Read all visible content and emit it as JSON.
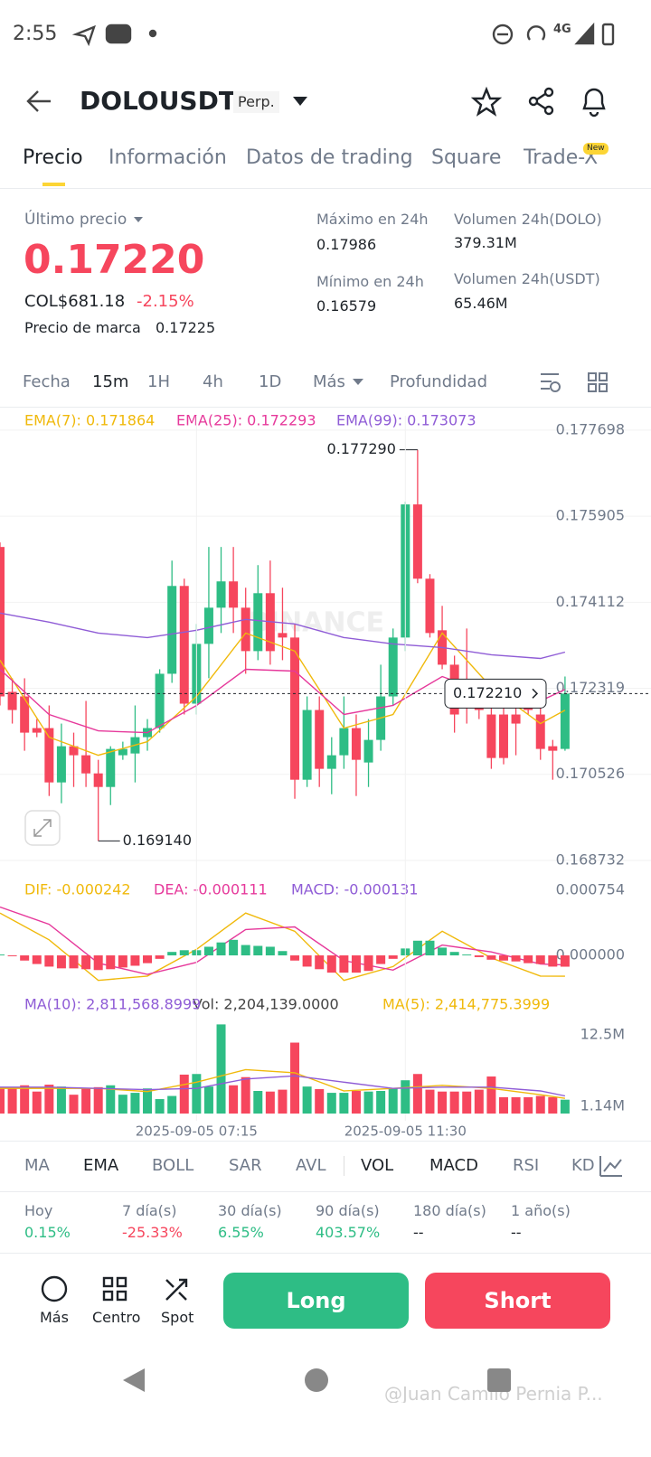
{
  "status_bar": {
    "time": "2:55",
    "network": "4G"
  },
  "header": {
    "symbol": "DOLOUSDT",
    "tag": "Perp."
  },
  "tabs": [
    "Precio",
    "Información",
    "Datos de trading",
    "Square",
    "Trade-X"
  ],
  "tabs_badge": "New",
  "price": {
    "label": "Último precio",
    "last": "0.17220",
    "fiat": "COL$681.18",
    "change": "-2.15%",
    "mark_label": "Precio de marca",
    "mark": "0.17225"
  },
  "stats": [
    {
      "label": "Máximo en 24h",
      "value": "0.17986"
    },
    {
      "label": "Mínimo en 24h",
      "value": "0.16579"
    },
    {
      "label": "Volumen 24h(DOLO)",
      "value": "379.31M"
    },
    {
      "label": "Volumen 24h(USDT)",
      "value": "65.46M"
    }
  ],
  "intervals": [
    "Fecha",
    "15m",
    "1H",
    "4h",
    "1D",
    "Más",
    "Profundidad"
  ],
  "chart_data": [
    {
      "type": "candlestick",
      "watermark": "BINANCE",
      "up_color": "#2ebd85",
      "down_color": "#f6465d",
      "grid": true,
      "xlim": [
        0,
        53
      ],
      "ylim": [
        0.168487,
        0.177998
      ],
      "yticks": [
        0.177698,
        0.175905,
        0.174112,
        0.172319,
        0.170526,
        0.168732
      ],
      "candles": [
        [
          0.175264,
          0.175358,
          0.171962,
          0.17215
        ],
        [
          0.172245,
          0.172528,
          0.171584,
          0.171867
        ],
        [
          0.17215,
          0.172528,
          0.171018,
          0.171395
        ],
        [
          0.17149,
          0.171678,
          0.171301,
          0.171395
        ],
        [
          0.17149,
          0.171962,
          0.170075,
          0.170358
        ],
        [
          0.170358,
          0.171584,
          0.169924,
          0.171112
        ],
        [
          0.171112,
          0.171395,
          0.170263,
          0.170924
        ],
        [
          0.170924,
          0.172056,
          0.170263,
          0.170546
        ],
        [
          0.170546,
          0.170829,
          0.16914,
          0.170263
        ],
        [
          0.170263,
          0.171112,
          0.169886,
          0.171056
        ],
        [
          0.170924,
          0.171207,
          0.170829,
          0.171056
        ],
        [
          0.170961,
          0.171962,
          0.170358,
          0.171301
        ],
        [
          0.171301,
          0.171678,
          0.171018,
          0.17149
        ],
        [
          0.17149,
          0.172716,
          0.171395,
          0.172622
        ],
        [
          0.172622,
          0.174981,
          0.172433,
          0.174452
        ],
        [
          0.174452,
          0.174603,
          0.171773,
          0.171999
        ],
        [
          0.171999,
          0.17366,
          0.171773,
          0.173245
        ],
        [
          0.173245,
          0.175264,
          0.172528,
          0.173999
        ],
        [
          0.173999,
          0.175264,
          0.173471,
          0.174547
        ],
        [
          0.174547,
          0.175264,
          0.173471,
          0.173999
        ],
        [
          0.173999,
          0.174415,
          0.172622,
          0.173094
        ],
        [
          0.173094,
          0.174886,
          0.172905,
          0.174301
        ],
        [
          0.174301,
          0.174981,
          0.172811,
          0.173094
        ],
        [
          0.173471,
          0.174415,
          0.172905,
          0.173377
        ],
        [
          0.173377,
          0.17366,
          0.170018,
          0.170414
        ],
        [
          0.170414,
          0.17215,
          0.170263,
          0.171867
        ],
        [
          0.171867,
          0.17215,
          0.170263,
          0.170641
        ],
        [
          0.170641,
          0.171301,
          0.170112,
          0.170924
        ],
        [
          0.170924,
          0.17215,
          0.170641,
          0.17149
        ],
        [
          0.17149,
          0.171773,
          0.170075,
          0.170829
        ],
        [
          0.170773,
          0.171678,
          0.170263,
          0.171244
        ],
        [
          0.171244,
          0.172811,
          0.171018,
          0.17215
        ],
        [
          0.17215,
          0.173565,
          0.171962,
          0.173377
        ],
        [
          0.173377,
          0.176207,
          0.173094,
          0.176151
        ],
        [
          0.176151,
          0.17729,
          0.174509,
          0.174603
        ],
        [
          0.174603,
          0.174698,
          0.173377,
          0.173471
        ],
        [
          0.173528,
          0.174037,
          0.172716,
          0.172811
        ],
        [
          0.172811,
          0.172999,
          0.171395,
          0.171773
        ],
        [
          0.17215,
          0.173565,
          0.171584,
          0.172056
        ],
        [
          0.171962,
          0.172245,
          0.171678,
          0.171867
        ],
        [
          0.171773,
          0.172056,
          0.170641,
          0.170867
        ],
        [
          0.171773,
          0.171962,
          0.170735,
          0.170867
        ],
        [
          0.171773,
          0.171962,
          0.170924,
          0.171584
        ],
        [
          0.171962,
          0.172056,
          0.171773,
          0.171867
        ],
        [
          0.171773,
          0.171962,
          0.170829,
          0.171056
        ],
        [
          0.171112,
          0.171244,
          0.170414,
          0.171018
        ],
        [
          0.171056,
          0.172565,
          0.171018,
          0.17221
        ]
      ],
      "series": [
        {
          "name": "EMA(7): 0.171864",
          "color": "#f0b90b",
          "x": [
            0,
            4,
            8,
            12,
            16,
            20,
            24,
            28,
            32,
            36,
            40,
            44,
            46
          ],
          "values": [
            0.172905,
            0.171301,
            0.170924,
            0.171207,
            0.17215,
            0.173471,
            0.173094,
            0.17149,
            0.171773,
            0.173471,
            0.172339,
            0.171584,
            0.171864
          ]
        },
        {
          "name": "EMA(25): 0.172293",
          "color": "#e6399b",
          "x": [
            0,
            4,
            8,
            12,
            16,
            20,
            24,
            28,
            32,
            36,
            40,
            44,
            46
          ],
          "values": [
            0.172716,
            0.171773,
            0.171433,
            0.171395,
            0.171962,
            0.172716,
            0.172678,
            0.171773,
            0.171962,
            0.172565,
            0.172188,
            0.172056,
            0.172293
          ]
        },
        {
          "name": "EMA(99): 0.173073",
          "color": "#8f5cd6",
          "x": [
            0,
            4,
            8,
            12,
            16,
            20,
            24,
            28,
            32,
            36,
            40,
            44,
            46
          ],
          "values": [
            0.173886,
            0.173698,
            0.173471,
            0.173377,
            0.173528,
            0.173754,
            0.17366,
            0.173377,
            0.173245,
            0.173169,
            0.173018,
            0.172942,
            0.173073
          ]
        }
      ],
      "annotations": [
        {
          "value": 0.17729,
          "label": "0.177290"
        },
        {
          "value": 0.16914,
          "label": "0.169140"
        },
        {
          "value": 0.17221,
          "label": "0.172210"
        }
      ]
    },
    {
      "type": "bar",
      "up_color": "#2ebd85",
      "down_color": "#f6465d",
      "xlim": [
        0,
        53
      ],
      "ylim": [
        -0.000429,
        0.000911
      ],
      "yticks": [
        0.000754,
        {
          "value": 0,
          "label": "0.000000"
        }
      ],
      "series": [
        {
          "name": "DIF: -0.000242",
          "color": "#f0b90b",
          "x": [
            0,
            4,
            8,
            12,
            16,
            20,
            24,
            28,
            32,
            36,
            40,
            44,
            46
          ],
          "values": [
            0.00049,
            0.00018,
            -0.00029,
            -0.00024,
            7e-05,
            0.00049,
            0.00028,
            -0.00029,
            -0.00013,
            0.00028,
            -3e-05,
            -0.00024,
            -0.000242
          ]
        },
        {
          "name": "DEA: -0.000111",
          "color": "#e6399b",
          "x": [
            0,
            4,
            8,
            12,
            16,
            20,
            24,
            28,
            32,
            36,
            40,
            44,
            46
          ],
          "values": [
            0.00056,
            0.00036,
            -9e-05,
            -0.00022,
            -8e-05,
            0.0003,
            0.00033,
            -6e-05,
            -0.00017,
            0.00012,
            4e-05,
            -0.0001,
            -0.000111
          ]
        },
        {
          "name": "MACD: -0.000131",
          "color": "#8f5cd6",
          "values": [
            1e-05,
            -1e-05,
            -6e-05,
            -0.0001,
            -0.00013,
            -0.00015,
            -0.00015,
            -0.00016,
            -0.00017,
            -0.00016,
            -0.00014,
            -0.00012,
            -9e-05,
            -4e-05,
            4e-05,
            6e-05,
            6e-05,
            0.0001,
            0.00015,
            0.00018,
            0.00012,
            0.00011,
            0.0001,
            5e-05,
            -6e-05,
            -0.00013,
            -0.00016,
            -0.0002,
            -0.0002,
            -0.0002,
            -0.00018,
            -0.0001,
            -4e-05,
            8e-05,
            0.00017,
            0.00017,
            9e-05,
            4e-05,
            1e-05,
            -2e-05,
            -5e-05,
            -6e-05,
            -7e-05,
            -9e-05,
            -0.0001,
            -0.00013,
            -0.000131
          ]
        }
      ]
    },
    {
      "type": "bar",
      "up_color": "#2ebd85",
      "down_color": "#f6465d",
      "xlim": [
        0,
        53
      ],
      "ylim": [
        0,
        18
      ],
      "yticks": [
        {
          "value": 12.5,
          "label": "12.5M"
        },
        {
          "value": 1.14,
          "label": "1.14M"
        }
      ],
      "x_labels": [
        {
          "index": 16,
          "label": "2025-09-05 07:15"
        },
        {
          "index": 33,
          "label": "2025-09-05 11:30"
        }
      ],
      "series": [
        {
          "name": "Vol: 2,204,139.0000",
          "color": "#444444",
          "values": [
            4.2,
            4.0,
            4.5,
            3.5,
            4.6,
            4.3,
            3.0,
            4.0,
            4.2,
            4.5,
            3.0,
            3.3,
            4.0,
            2.3,
            2.8,
            6.2,
            6.3,
            4.3,
            14.2,
            4.5,
            5.8,
            3.6,
            3.5,
            3.8,
            11.3,
            4.3,
            3.9,
            3.3,
            3.3,
            3.6,
            3.5,
            3.6,
            4.0,
            5.3,
            6.3,
            3.8,
            3.5,
            3.5,
            3.5,
            3.8,
            5.9,
            2.6,
            2.6,
            2.6,
            2.8,
            2.6,
            2.204139
          ]
        },
        {
          "name": "MA(5): 2,414,775.3999",
          "color": "#f0b90b",
          "x": [
            0,
            4,
            8,
            12,
            16,
            20,
            24,
            28,
            32,
            36,
            40,
            44,
            46
          ],
          "values": [
            4,
            4,
            4,
            3.5,
            5,
            7,
            6.5,
            3.6,
            4,
            4.5,
            4,
            3,
            2.414775
          ]
        },
        {
          "name": "MA(10): 2,811,568.8999",
          "color": "#8f5cd6",
          "x": [
            0,
            4,
            8,
            12,
            16,
            20,
            24,
            28,
            32,
            36,
            40,
            44,
            46
          ],
          "values": [
            4.2,
            4.2,
            4,
            3.8,
            4,
            5.5,
            6,
            5,
            4,
            4.2,
            4.2,
            3.6,
            2.811569
          ]
        }
      ]
    }
  ],
  "indicators": [
    "MA",
    "EMA",
    "BOLL",
    "SAR",
    "AVL",
    "VOL",
    "MACD",
    "RSI",
    "KD"
  ],
  "performance": [
    {
      "label": "Hoy",
      "value": "0.15%"
    },
    {
      "label": "7 día(s)",
      "value": "-25.33%"
    },
    {
      "label": "30 día(s)",
      "value": "6.55%"
    },
    {
      "label": "90 día(s)",
      "value": "403.57%"
    },
    {
      "label": "180 día(s)",
      "value": "--"
    },
    {
      "label": "1 año(s)",
      "value": "--"
    }
  ],
  "actions": [
    "Más",
    "Centro",
    "Spot"
  ],
  "buttons": {
    "long": "Long",
    "short": "Short"
  },
  "watermark": "@Juan Camilo Pernia P..."
}
